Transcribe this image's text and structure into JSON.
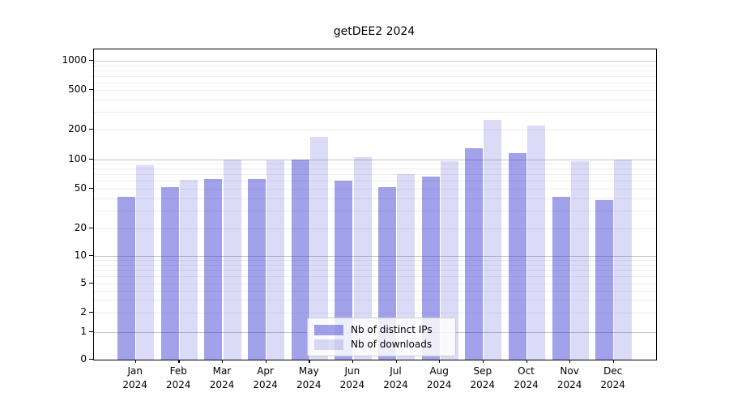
{
  "figure": {
    "title": "getDEE2 2024"
  },
  "legend": {
    "items": [
      {
        "label": "Nb of distinct IPs",
        "swatch_color": "#a3a3ef",
        "swatch_rgba": "rgba(34,34,204,0.42)"
      },
      {
        "label": "Nb of downloads",
        "swatch_color": "#dcdcf8",
        "swatch_rgba": "rgba(34,34,204,0.16)"
      }
    ],
    "position": "lower center"
  },
  "colors": {
    "ips_bar_hex": "#a3a3ef",
    "downloads_bar_hex": "#dcdcf8",
    "ips_bar_rgba": "rgba(34,34,204,0.42)",
    "downloads_bar_rgba": "rgba(34,34,204,0.16)",
    "grid_minor": "#ececec",
    "grid_major": "#c6c6c6",
    "spine": "#000000"
  },
  "chart_data": {
    "type": "bar",
    "title": "getDEE2 2024",
    "months": [
      "Jan",
      "Feb",
      "Mar",
      "Apr",
      "May",
      "Jun",
      "Jul",
      "Aug",
      "Sep",
      "Oct",
      "Nov",
      "Dec"
    ],
    "year": "2024",
    "categories": [
      "Jan 2024",
      "Feb 2024",
      "Mar 2024",
      "Apr 2024",
      "May 2024",
      "Jun 2024",
      "Jul 2024",
      "Aug 2024",
      "Sep 2024",
      "Oct 2024",
      "Nov 2024",
      "Dec 2024"
    ],
    "series": [
      {
        "name": "Nb of distinct IPs",
        "values": [
          41,
          52,
          63,
          63,
          100,
          60,
          52,
          66,
          130,
          115,
          41,
          38
        ]
      },
      {
        "name": "Nb of downloads",
        "values": [
          86,
          62,
          100,
          97,
          170,
          105,
          70,
          95,
          250,
          220,
          96,
          100
        ]
      }
    ],
    "y_tick_labels": [
      "1000",
      "500",
      "200",
      "100",
      "50",
      "20",
      "10",
      "5",
      "2",
      "1",
      "0"
    ],
    "y_tick_values": [
      1000,
      500,
      200,
      100,
      50,
      20,
      10,
      5,
      2,
      1,
      0
    ],
    "ylim": [
      0,
      1300
    ],
    "yscale": "log-like (labels 0,1,2,5,10,20,50,100,200,500,1000; linear segment 0-1)",
    "xlabel": "",
    "ylabel": "",
    "grid": "horizontal log minor + major gridlines",
    "legend_position": "lower center"
  }
}
